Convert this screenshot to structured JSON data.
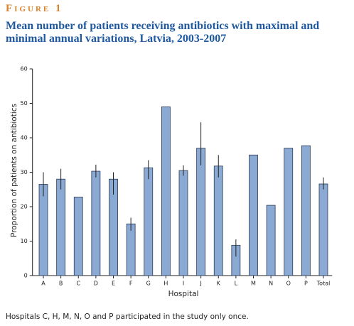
{
  "figure_label": "Figure 1",
  "chart_data": {
    "type": "bar",
    "title": "Mean number of patients receiving antibiotics with maximal and minimal annual variations, Latvia, 2003-2007",
    "x_label": "Hospital",
    "y_label": "Proportion of patients on antibiotics",
    "categories": [
      "A",
      "B",
      "C",
      "D",
      "E",
      "F",
      "G",
      "H",
      "I",
      "J",
      "K",
      "L",
      "M",
      "N",
      "O",
      "P",
      "Total"
    ],
    "values": [
      26.5,
      28,
      22.8,
      30.3,
      28,
      15,
      31.3,
      49,
      30.5,
      37,
      31.8,
      8.8,
      35,
      20.4,
      37,
      37.7,
      26.6
    ],
    "min": [
      23,
      25,
      null,
      28.5,
      23.5,
      13,
      28,
      null,
      29,
      32,
      28.5,
      5.5,
      null,
      null,
      null,
      null,
      25
    ],
    "max": [
      30,
      31,
      null,
      32.2,
      30,
      16.8,
      33.5,
      null,
      32,
      44.5,
      35,
      10.5,
      null,
      null,
      null,
      null,
      28.5
    ],
    "color": "#8aa9d3",
    "ylim": [
      0,
      60
    ],
    "yticks": [
      0,
      10,
      20,
      30,
      40,
      50,
      60
    ],
    "grid": false
  },
  "footnote": "Hospitals C, H, M, N, O and P participated in the study only once."
}
